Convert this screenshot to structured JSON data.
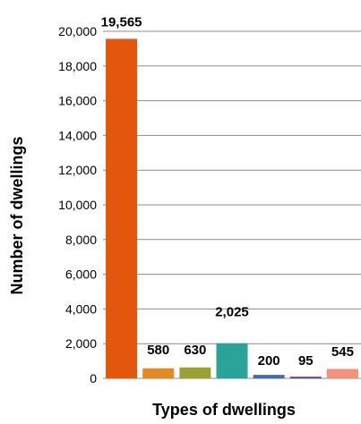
{
  "chart_data": {
    "type": "bar",
    "title": "",
    "xlabel": "Types of dwellings",
    "ylabel": "Number of dwellings",
    "ylim": [
      0,
      20000
    ],
    "ytick_step": 2000,
    "ytick_labels": [
      "0",
      "2,000",
      "4,000",
      "6,000",
      "8,000",
      "10,000",
      "12,000",
      "14,000",
      "16,000",
      "18,000",
      "20,000"
    ],
    "grid": true,
    "legend": "none",
    "categories": [
      "",
      "",
      "",
      "",
      "",
      "",
      ""
    ],
    "values": [
      19565,
      580,
      630,
      2025,
      200,
      95,
      545
    ],
    "data_labels": [
      "19,565",
      "580",
      "630",
      "2,025",
      "200",
      "95",
      "545"
    ],
    "colors": [
      "#e2570b",
      "#e38b1e",
      "#9aa12f",
      "#2aa398",
      "#3a6bc4",
      "#6a3fa0",
      "#f5907c"
    ]
  }
}
